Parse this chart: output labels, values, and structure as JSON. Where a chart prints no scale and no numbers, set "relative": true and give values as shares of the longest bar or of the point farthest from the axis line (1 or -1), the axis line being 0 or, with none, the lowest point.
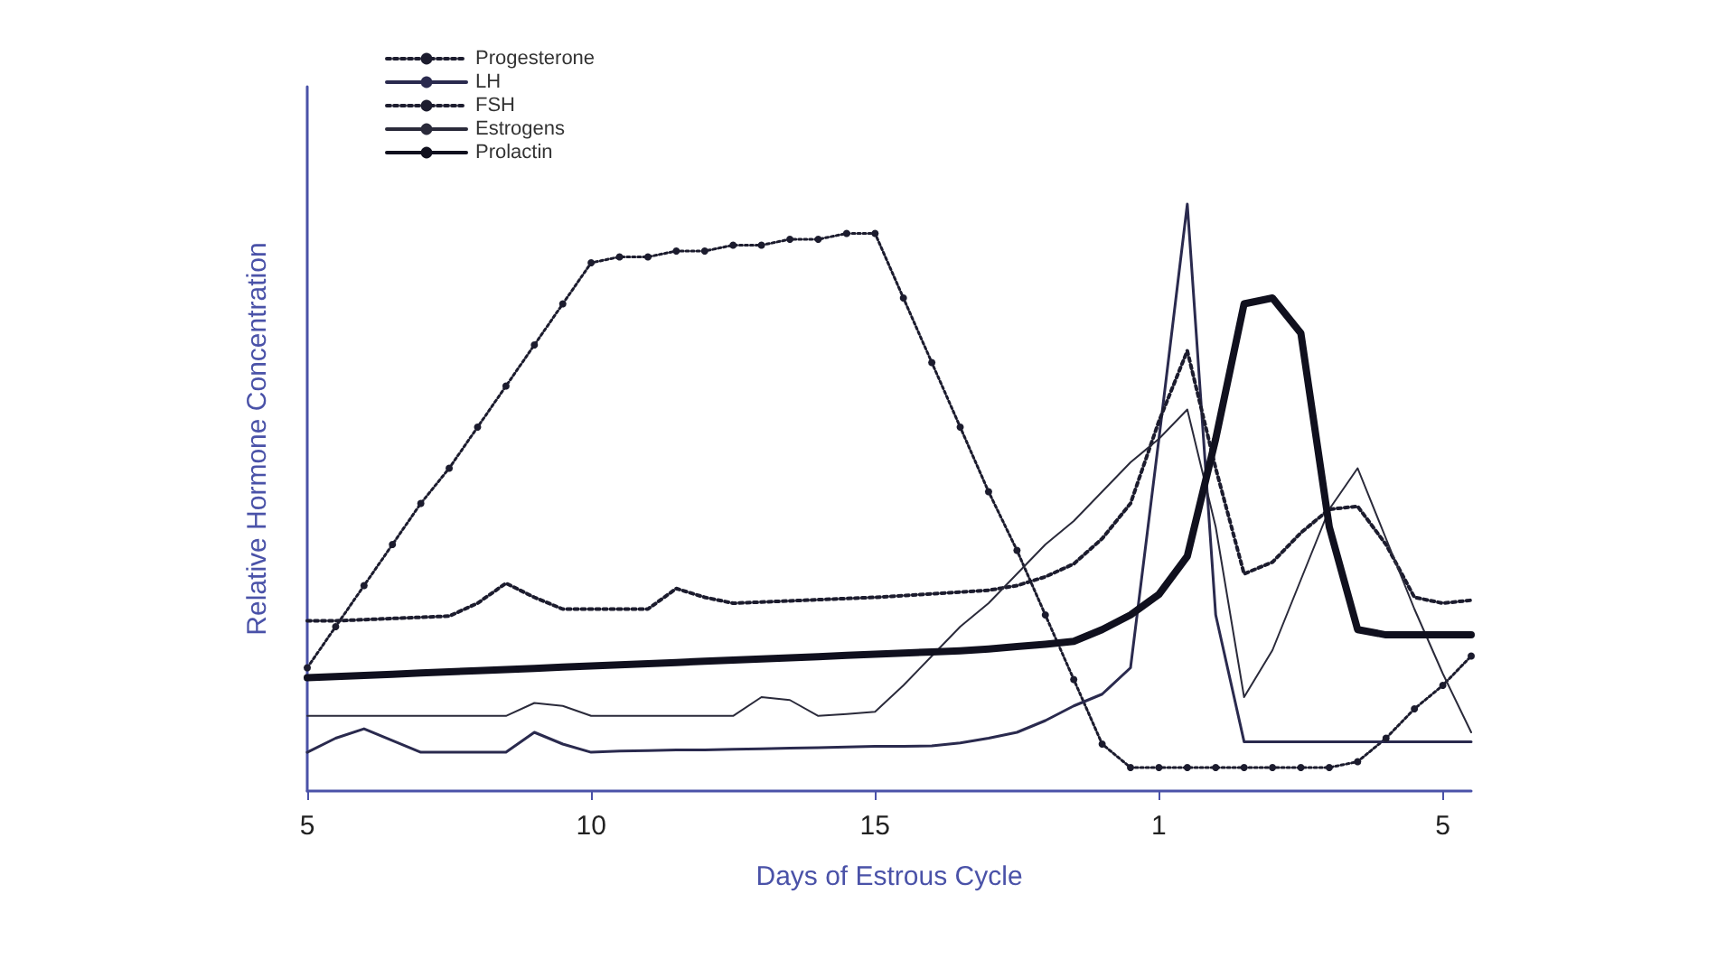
{
  "chart_data": {
    "type": "line",
    "relative": true,
    "xlabel": "Days of Estrous Cycle",
    "ylabel": "Relative Hormone Concentration",
    "grid": false,
    "legend": "top left",
    "categories": [
      "5",
      null,
      null,
      null,
      null,
      null,
      null,
      null,
      null,
      null,
      "10",
      null,
      null,
      null,
      null,
      null,
      null,
      null,
      null,
      null,
      "15",
      null,
      null,
      null,
      null,
      null,
      null,
      null,
      null,
      null,
      "1",
      null,
      null,
      null,
      null,
      null,
      null,
      null,
      null,
      null,
      "5",
      null
    ],
    "series": [
      {
        "name": "Progesterone",
        "color": "#1c1c2e",
        "line_style": "dotted",
        "marker": "circle",
        "values": [
          0.21,
          0.28,
          0.35,
          0.42,
          0.49,
          0.55,
          0.62,
          0.69,
          0.76,
          0.83,
          0.9,
          0.91,
          0.91,
          0.92,
          0.92,
          0.93,
          0.93,
          0.94,
          0.94,
          0.95,
          0.95,
          0.84,
          0.73,
          0.62,
          0.51,
          0.41,
          0.3,
          0.19,
          0.08,
          0.04,
          0.04,
          0.04,
          0.04,
          0.04,
          0.04,
          0.04,
          0.04,
          0.05,
          0.09,
          0.14,
          0.18,
          0.23
        ]
      },
      {
        "name": "LH",
        "color": "#2a2a4e",
        "line_style": "solid",
        "marker": "none",
        "values": [
          0.066,
          0.09,
          0.106,
          0.086,
          0.066,
          0.066,
          0.066,
          0.066,
          0.1,
          0.08,
          0.066,
          0.068,
          0.069,
          0.07,
          0.07,
          0.071,
          0.072,
          0.073,
          0.074,
          0.075,
          0.076,
          0.076,
          0.077,
          0.082,
          0.09,
          0.1,
          0.12,
          0.145,
          0.165,
          0.21,
          0.6,
          1,
          0.3,
          0.084,
          0.084,
          0.084,
          0.084,
          0.084,
          0.084,
          0.084,
          0.084,
          0.084
        ]
      },
      {
        "name": "FSH",
        "color": "#1c1c2e",
        "line_style": "dotted",
        "marker": "none",
        "values": [
          0.29,
          0.29,
          0.292,
          0.294,
          0.296,
          0.298,
          0.32,
          0.354,
          0.33,
          0.31,
          0.31,
          0.31,
          0.31,
          0.345,
          0.33,
          0.32,
          0.322,
          0.324,
          0.326,
          0.328,
          0.33,
          0.333,
          0.336,
          0.339,
          0.342,
          0.35,
          0.365,
          0.387,
          0.43,
          0.49,
          0.63,
          0.75,
          0.55,
          0.37,
          0.39,
          0.44,
          0.48,
          0.485,
          0.42,
          0.33,
          0.32,
          0.325
        ]
      },
      {
        "name": "Estrogens",
        "color": "#2a2a3a",
        "line_style": "solid",
        "marker": "none",
        "values": [
          0.128,
          0.128,
          0.128,
          0.128,
          0.128,
          0.128,
          0.128,
          0.128,
          0.15,
          0.145,
          0.128,
          0.128,
          0.128,
          0.128,
          0.128,
          0.128,
          0.16,
          0.155,
          0.128,
          0.131,
          0.135,
          0.18,
          0.23,
          0.28,
          0.32,
          0.37,
          0.42,
          0.46,
          0.51,
          0.56,
          0.6,
          0.65,
          0.45,
          0.16,
          0.24,
          0.36,
          0.48,
          0.55,
          0.43,
          0.31,
          0.2,
          0.1
        ]
      },
      {
        "name": "Prolactin",
        "color": "#10101e",
        "line_style": "solid",
        "marker": "none",
        "values": [
          0.193,
          0.195,
          0.197,
          0.199,
          0.201,
          0.203,
          0.205,
          0.207,
          0.209,
          0.211,
          0.213,
          0.215,
          0.217,
          0.219,
          0.221,
          0.223,
          0.225,
          0.227,
          0.229,
          0.231,
          0.233,
          0.235,
          0.237,
          0.239,
          0.242,
          0.246,
          0.25,
          0.255,
          0.275,
          0.3,
          0.335,
          0.4,
          0.6,
          0.83,
          0.84,
          0.78,
          0.45,
          0.275,
          0.266,
          0.266,
          0.266,
          0.266
        ]
      }
    ]
  }
}
